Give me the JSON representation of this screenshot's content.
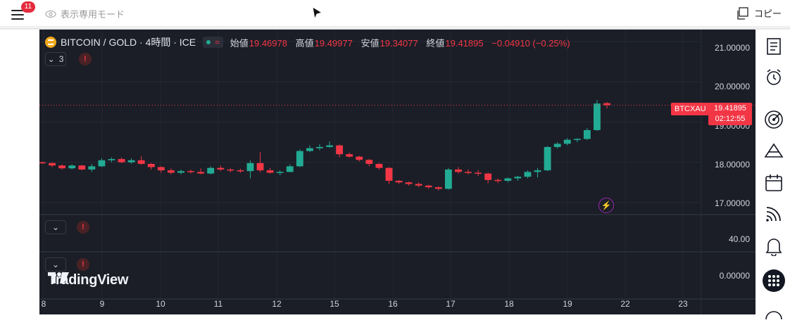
{
  "topbar": {
    "notification_count": "11",
    "view_mode_label": "表示専用モード",
    "copy_label": "コピー"
  },
  "chart_header": {
    "title": "BITCOIN / GOLD · 4時間 · ICE",
    "open_label": "始値",
    "open": "19.46978",
    "high_label": "高値",
    "high": "19.49977",
    "low_label": "安値",
    "low": "19.34077",
    "close_label": "終値",
    "close": "19.41895",
    "change": "−0.04910 (−0.25%)",
    "indicator_count": "3"
  },
  "price_marker": {
    "symbol": "BTCXAU",
    "price": "19.41895",
    "countdown": "02:12:55"
  },
  "watermark": "TradingView",
  "colors": {
    "up": "#22ab94",
    "down": "#f23645",
    "background": "#1b1e27",
    "accent": "#2962ff"
  },
  "chart_data": {
    "type": "candlestick",
    "y_ticks": [
      "21.00000",
      "20.00000",
      "19.00000",
      "18.00000",
      "17.00000"
    ],
    "pane2_ticks": [
      "40.00"
    ],
    "pane3_ticks": [
      "0.00000"
    ],
    "x_ticks": [
      "8",
      "9",
      "10",
      "11",
      "12",
      "15",
      "16",
      "17",
      "18",
      "19",
      "22",
      "23"
    ],
    "ylim": [
      16.7,
      21.3
    ],
    "last_price": 19.41895,
    "candles": [
      [
        18.0,
        18.02,
        17.96,
        17.98
      ],
      [
        17.98,
        18.0,
        17.88,
        17.92
      ],
      [
        17.92,
        17.95,
        17.82,
        17.85
      ],
      [
        17.85,
        17.95,
        17.82,
        17.92
      ],
      [
        17.92,
        17.94,
        17.8,
        17.82
      ],
      [
        17.82,
        17.96,
        17.76,
        17.9
      ],
      [
        17.9,
        18.1,
        17.88,
        18.05
      ],
      [
        18.05,
        18.12,
        18.0,
        18.08
      ],
      [
        18.08,
        18.12,
        17.98,
        18.0
      ],
      [
        18.0,
        18.1,
        17.96,
        18.05
      ],
      [
        18.05,
        18.15,
        17.94,
        17.96
      ],
      [
        17.96,
        17.98,
        17.82,
        17.88
      ],
      [
        17.88,
        17.9,
        17.74,
        17.8
      ],
      [
        17.8,
        17.85,
        17.7,
        17.74
      ],
      [
        17.74,
        17.82,
        17.7,
        17.78
      ],
      [
        17.78,
        17.82,
        17.72,
        17.76
      ],
      [
        17.76,
        17.85,
        17.7,
        17.72
      ],
      [
        17.72,
        17.9,
        17.7,
        17.86
      ],
      [
        17.86,
        17.92,
        17.78,
        17.82
      ],
      [
        17.82,
        17.85,
        17.75,
        17.8
      ],
      [
        17.8,
        17.84,
        17.74,
        17.78
      ],
      [
        17.78,
        18.05,
        17.6,
        17.98
      ],
      [
        17.98,
        18.25,
        17.75,
        17.8
      ],
      [
        17.8,
        17.86,
        17.72,
        17.74
      ],
      [
        17.74,
        17.8,
        17.68,
        17.76
      ],
      [
        17.76,
        17.95,
        17.75,
        17.9
      ],
      [
        17.9,
        18.32,
        17.88,
        18.28
      ],
      [
        18.28,
        18.42,
        18.25,
        18.35
      ],
      [
        18.35,
        18.45,
        18.3,
        18.38
      ],
      [
        18.38,
        18.52,
        18.36,
        18.42
      ],
      [
        18.42,
        18.44,
        18.12,
        18.2
      ],
      [
        18.2,
        18.24,
        18.12,
        18.14
      ],
      [
        18.14,
        18.16,
        18.02,
        18.06
      ],
      [
        18.06,
        18.08,
        17.9,
        17.96
      ],
      [
        17.96,
        17.98,
        17.82,
        17.86
      ],
      [
        17.86,
        17.88,
        17.46,
        17.54
      ],
      [
        17.54,
        17.56,
        17.46,
        17.5
      ],
      [
        17.5,
        17.52,
        17.42,
        17.46
      ],
      [
        17.46,
        17.5,
        17.38,
        17.42
      ],
      [
        17.42,
        17.44,
        17.34,
        17.38
      ],
      [
        17.38,
        17.4,
        17.3,
        17.34
      ],
      [
        17.34,
        17.86,
        17.32,
        17.82
      ],
      [
        17.82,
        17.88,
        17.72,
        17.76
      ],
      [
        17.76,
        17.82,
        17.7,
        17.74
      ],
      [
        17.74,
        17.8,
        17.66,
        17.72
      ],
      [
        17.72,
        17.74,
        17.48,
        17.56
      ],
      [
        17.56,
        17.6,
        17.48,
        17.54
      ],
      [
        17.54,
        17.62,
        17.5,
        17.6
      ],
      [
        17.6,
        17.66,
        17.54,
        17.64
      ],
      [
        17.64,
        17.8,
        17.6,
        17.76
      ],
      [
        17.76,
        17.86,
        17.62,
        17.8
      ],
      [
        17.8,
        18.4,
        17.78,
        18.38
      ],
      [
        18.38,
        18.5,
        18.34,
        18.46
      ],
      [
        18.46,
        18.6,
        18.42,
        18.56
      ],
      [
        18.56,
        18.6,
        18.5,
        18.58
      ],
      [
        18.58,
        18.85,
        18.55,
        18.8
      ],
      [
        18.8,
        19.55,
        18.78,
        19.46
      ],
      [
        19.47,
        19.5,
        19.34,
        19.42
      ]
    ]
  }
}
